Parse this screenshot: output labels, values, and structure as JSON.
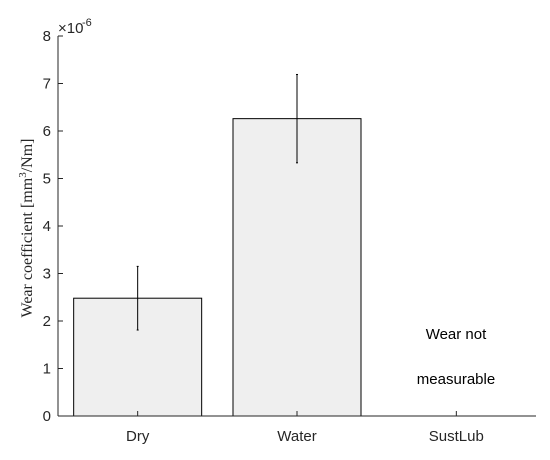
{
  "chart_data": {
    "type": "bar",
    "categories": [
      "Dry",
      "Water",
      "SustLub"
    ],
    "values": [
      2.48,
      6.26,
      null
    ],
    "errors": [
      0.67,
      0.93,
      null
    ],
    "ylim": [
      0,
      8
    ],
    "yticks": [
      "0",
      "1",
      "2",
      "3",
      "4",
      "5",
      "6",
      "7",
      "8"
    ],
    "y_multiplier": {
      "base": "×10",
      "exponent": "-6"
    },
    "ylabel": {
      "main": "Wear coefficient [mm",
      "superscript": "3",
      "tail": "/Nm]"
    },
    "xlabel": "",
    "title": "",
    "annotation_lines": [
      "Wear not",
      "measurable"
    ],
    "grid": false,
    "bar_color": "#efefef",
    "edge_color": "#000000"
  }
}
